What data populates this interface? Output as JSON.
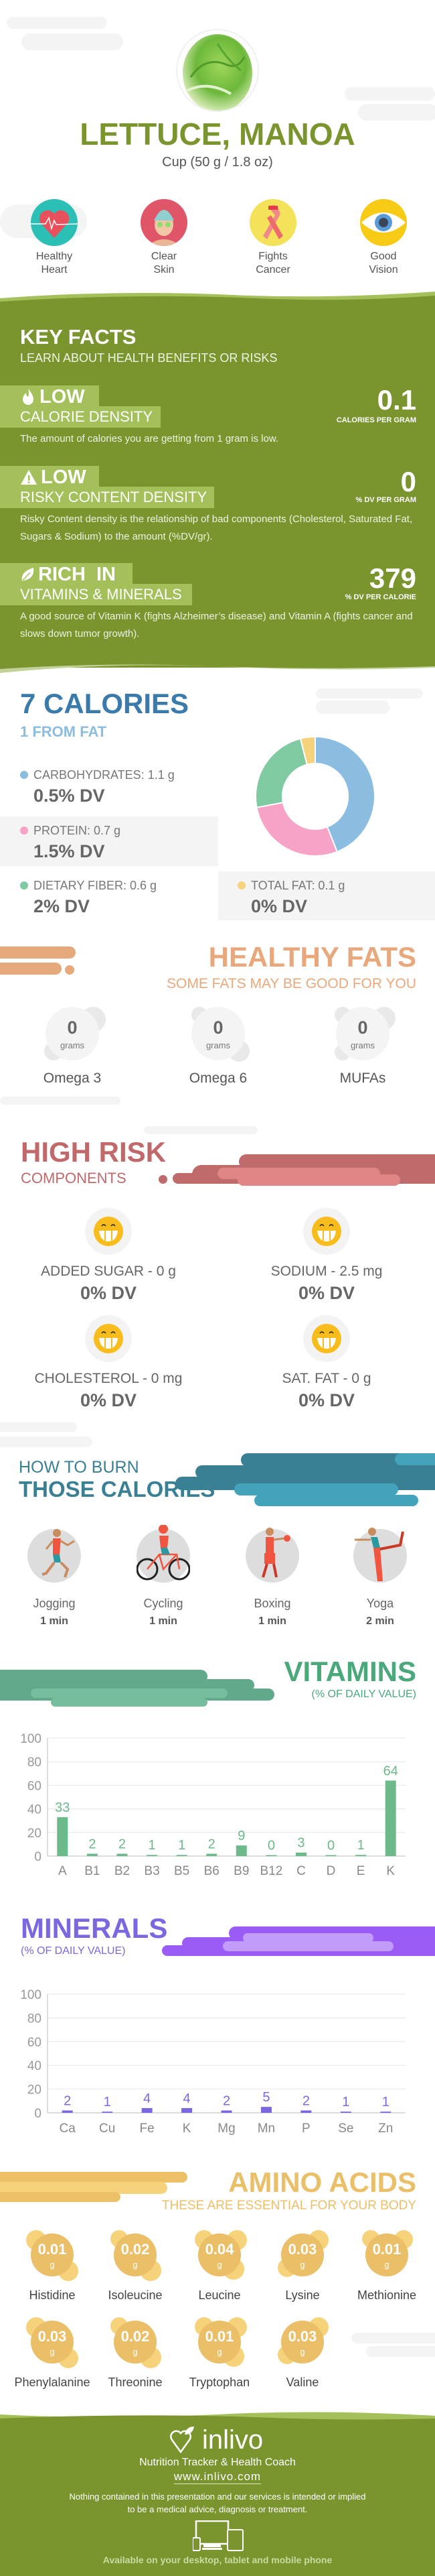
{
  "header": {
    "title": "LETTUCE, MANOA",
    "serving": "Cup (50 g / 1.8 oz)"
  },
  "benefits": [
    {
      "line1": "Healthy",
      "line2": "Heart",
      "icon": "heart-icon",
      "color": "#2bbfb6"
    },
    {
      "line1": "Clear",
      "line2": "Skin",
      "icon": "face-mask-icon",
      "color": "#e05567"
    },
    {
      "line1": "Fights",
      "line2": "Cancer",
      "icon": "ribbon-icon",
      "color": "#f3e25a"
    },
    {
      "line1": "Good",
      "line2": "Vision",
      "icon": "eye-icon",
      "color": "#f7cb15"
    }
  ],
  "key_facts": {
    "title": "KEY FACTS",
    "subtitle": "LEARN ABOUT HEALTH BENEFITS OR RISKS",
    "items": [
      {
        "icon": "flame-icon",
        "level": "LOW",
        "name": "CALORIE DENSITY",
        "value": "0.1",
        "unit": "CALORIES PER GRAM",
        "description": "The amount of calories you are getting from 1 gram is low."
      },
      {
        "icon": "warning-icon",
        "level": "LOW",
        "name": "RISKY CONTENT DENSITY",
        "value": "0",
        "unit": "% DV PER GRAM",
        "description": "Risky Content density is the relationship of bad components (Cholesterol, Saturated Fat, Sugars & Sodium) to the amount (%DV/gr)."
      },
      {
        "icon": "leaf-icon",
        "level": "RICH  IN",
        "name": "VITAMINS & MINERALS",
        "value": "379",
        "unit": "% DV PER CALORIE",
        "description": "A good source of Vitamin K (fights Alzheimer’s disease) and Vitamin A (fights cancer and slows down tumor growth)."
      }
    ]
  },
  "calories": {
    "title": "7 CALORIES",
    "subtitle": "1 FROM FAT",
    "nutrients": [
      {
        "label": "CARBOHYDRATES: 1.1 g",
        "dv": "0.5% DV"
      },
      {
        "label": "PROTEIN: 0.7 g",
        "dv": "1.5% DV"
      },
      {
        "label": "DIETARY FIBER: 0.6 g",
        "dv": "2% DV"
      },
      {
        "label": "TOTAL FAT: 0.1 g",
        "dv": "0% DV"
      }
    ]
  },
  "healthy_fats": {
    "title": "HEALTHY FATS",
    "subtitle": "SOME FATS MAY BE GOOD FOR YOU",
    "unit": "grams",
    "items": [
      {
        "name": "Omega 3",
        "value": "0"
      },
      {
        "name": "Omega 6",
        "value": "0"
      },
      {
        "name": "MUFAs",
        "value": "0"
      }
    ]
  },
  "high_risk": {
    "title": "HIGH RISK",
    "subtitle": "COMPONENTS",
    "items": [
      {
        "label": "ADDED SUGAR - 0 g",
        "dv": "0% DV",
        "icon": "grinning-face-icon"
      },
      {
        "label": "SODIUM - 2.5 mg",
        "dv": "0% DV",
        "icon": "grinning-face-icon"
      },
      {
        "label": "CHOLESTEROL - 0 mg",
        "dv": "0% DV",
        "icon": "grinning-face-icon"
      },
      {
        "label": "SAT. FAT - 0 g",
        "dv": "0% DV",
        "icon": "grinning-face-icon"
      }
    ]
  },
  "burn": {
    "title_line1": "HOW TO BURN",
    "title_line2": "THOSE CALORIES",
    "activities": [
      {
        "name": "Jogging",
        "time": "1 min",
        "icon": "jogging-icon"
      },
      {
        "name": "Cycling",
        "time": "1 min",
        "icon": "cycling-icon"
      },
      {
        "name": "Boxing",
        "time": "1 min",
        "icon": "boxing-icon"
      },
      {
        "name": "Yoga",
        "time": "2 min",
        "icon": "yoga-icon"
      }
    ]
  },
  "amino_acids": {
    "title": "AMINO ACIDS",
    "subtitle": "THESE ARE ESSENTIAL FOR YOUR BODY",
    "unit": "g",
    "items": [
      {
        "name": "Histidine",
        "value": "0.01"
      },
      {
        "name": "Isoleucine",
        "value": "0.02"
      },
      {
        "name": "Leucine",
        "value": "0.04"
      },
      {
        "name": "Lysine",
        "value": "0.03"
      },
      {
        "name": "Methionine",
        "value": "0.01"
      },
      {
        "name": "Phenylalanine",
        "value": "0.03"
      },
      {
        "name": "Threonine",
        "value": "0.02"
      },
      {
        "name": "Tryptophan",
        "value": "0.01"
      },
      {
        "name": "Valine",
        "value": "0.03"
      }
    ]
  },
  "footer": {
    "brand": "inlivo",
    "tagline": "Nutrition Tracker & Health Coach",
    "url": "www.inlivo.com",
    "disclaimer_line1": "Nothing contained in this presentation and our services is intended or implied",
    "disclaimer_line2": "to be a medical advice, diagnosis or treatment.",
    "availability": "Available on your desktop, tablet and mobile phone"
  },
  "colors": {
    "green": "#7a942e",
    "light_green": "#a3c05a",
    "calories_blue": "#3a7bab",
    "fats_orange": "#e8a87c",
    "risk_red": "#c0686a",
    "burn_teal": "#3a8094",
    "vitamins_green": "#4aa87a",
    "minerals_purple": "#7b68e0",
    "amino_gold": "#ebbe68"
  },
  "chart_data": [
    {
      "type": "pie",
      "categories": [
        "CARBOHYDRATES",
        "PROTEIN",
        "DIETARY FIBER",
        "TOTAL FAT"
      ],
      "values": [
        1.1,
        0.7,
        0.6,
        0.1
      ],
      "unit": "g",
      "colors": [
        "#8bbde0",
        "#f7a3c8",
        "#7fcaa0",
        "#f6d27a"
      ],
      "donut": true
    },
    {
      "type": "bar",
      "title": "VITAMINS",
      "subtitle": "(% OF DAILY VALUE)",
      "categories": [
        "A",
        "B1",
        "B2",
        "B3",
        "B5",
        "B6",
        "B9",
        "B12",
        "C",
        "D",
        "E",
        "K"
      ],
      "values": [
        33,
        2,
        2,
        1,
        1,
        2,
        9,
        0,
        3,
        0,
        1,
        64
      ],
      "ylim": [
        0,
        100
      ],
      "yticks": [
        0,
        20,
        40,
        60,
        80,
        100
      ],
      "grid": true,
      "data_labels": true,
      "color": "#6cb98a"
    },
    {
      "type": "bar",
      "title": "MINERALS",
      "subtitle": "(% OF DAILY VALUE)",
      "categories": [
        "Ca",
        "Cu",
        "Fe",
        "K",
        "Mg",
        "Mn",
        "P",
        "Se",
        "Zn"
      ],
      "values": [
        2,
        1,
        4,
        4,
        2,
        5,
        2,
        1,
        1
      ],
      "ylim": [
        0,
        100
      ],
      "yticks": [
        0,
        20,
        40,
        60,
        80,
        100
      ],
      "grid": true,
      "data_labels": true,
      "color": "#7b68e0"
    }
  ]
}
